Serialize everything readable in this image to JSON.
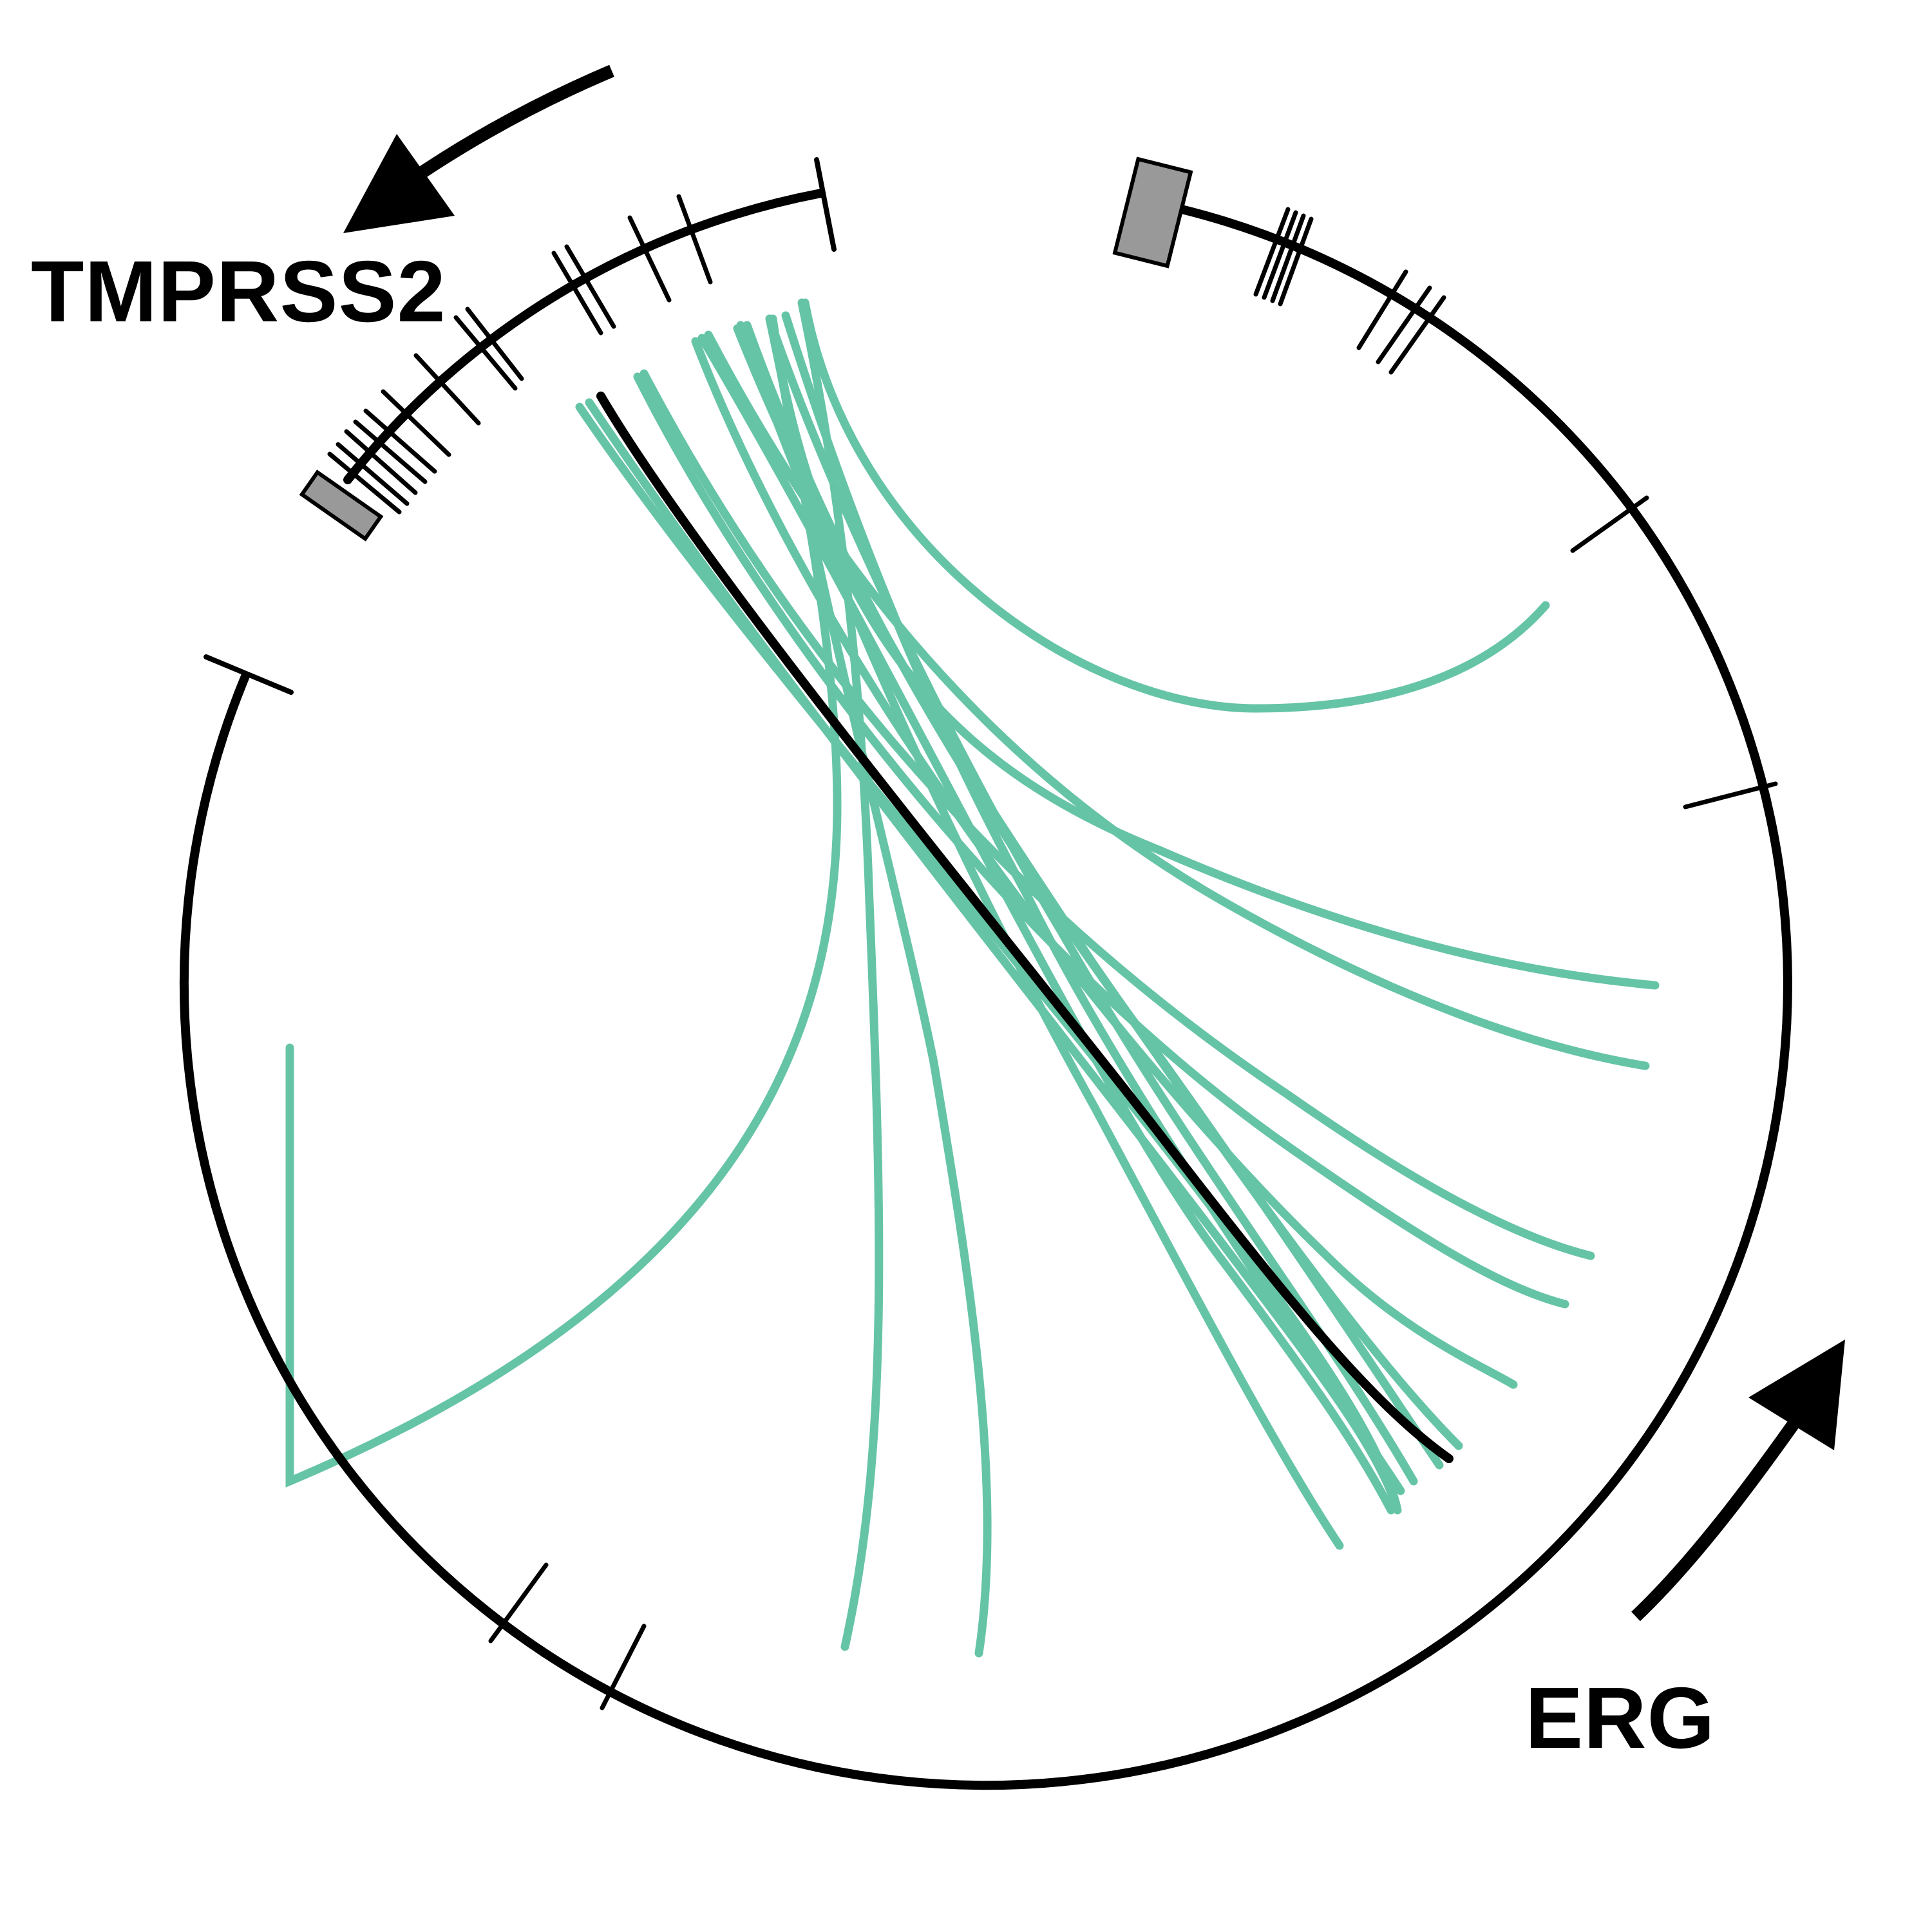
{
  "genes": {
    "tmprss2": {
      "label": "TMPRSS2",
      "exon_count": 14,
      "strand": "minus"
    },
    "erg": {
      "label": "ERG",
      "exon_count": 12,
      "strand": "plus"
    }
  },
  "colors": {
    "background": "#ffffff",
    "arc": "#000000",
    "fusion_link": "#66c4a6",
    "highlight_link": "#000000",
    "exon_box": "#999999"
  },
  "links": {
    "count": 17,
    "highlighted_count": 1
  }
}
